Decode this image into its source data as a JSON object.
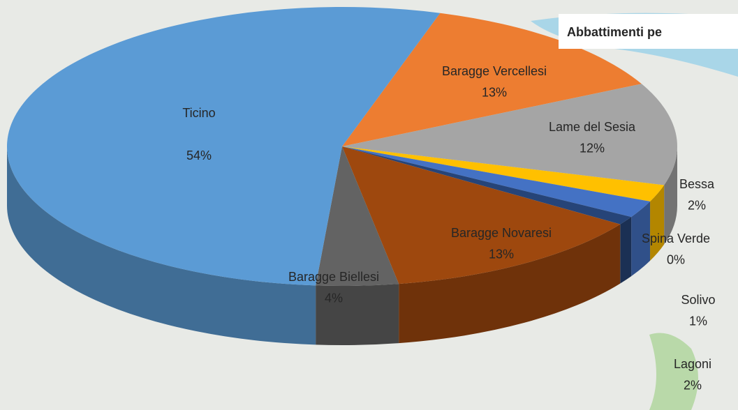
{
  "chart_data": {
    "type": "pie",
    "title": "Abbattimenti pe",
    "categories": [
      "Baragge Vercellesi",
      "Lame del Sesia",
      "Bessa",
      "Lagoni",
      "Spina Verde",
      "Solivo",
      "Baragge Novaresi",
      "Baragge Biellesi",
      "Ticino"
    ],
    "values": [
      13,
      12,
      2,
      2,
      0,
      1,
      13,
      4,
      54
    ],
    "value_labels": [
      "13%",
      "12%",
      "2%",
      "2%",
      "0%",
      "1%",
      "13%",
      "4%",
      "54%"
    ],
    "colors": [
      "#ed7d31",
      "#a5a5a5",
      "#ffc000",
      "#4472c4",
      "#70ad47",
      "#264478",
      "#9e480e",
      "#636363",
      "#5b9bd5"
    ]
  }
}
